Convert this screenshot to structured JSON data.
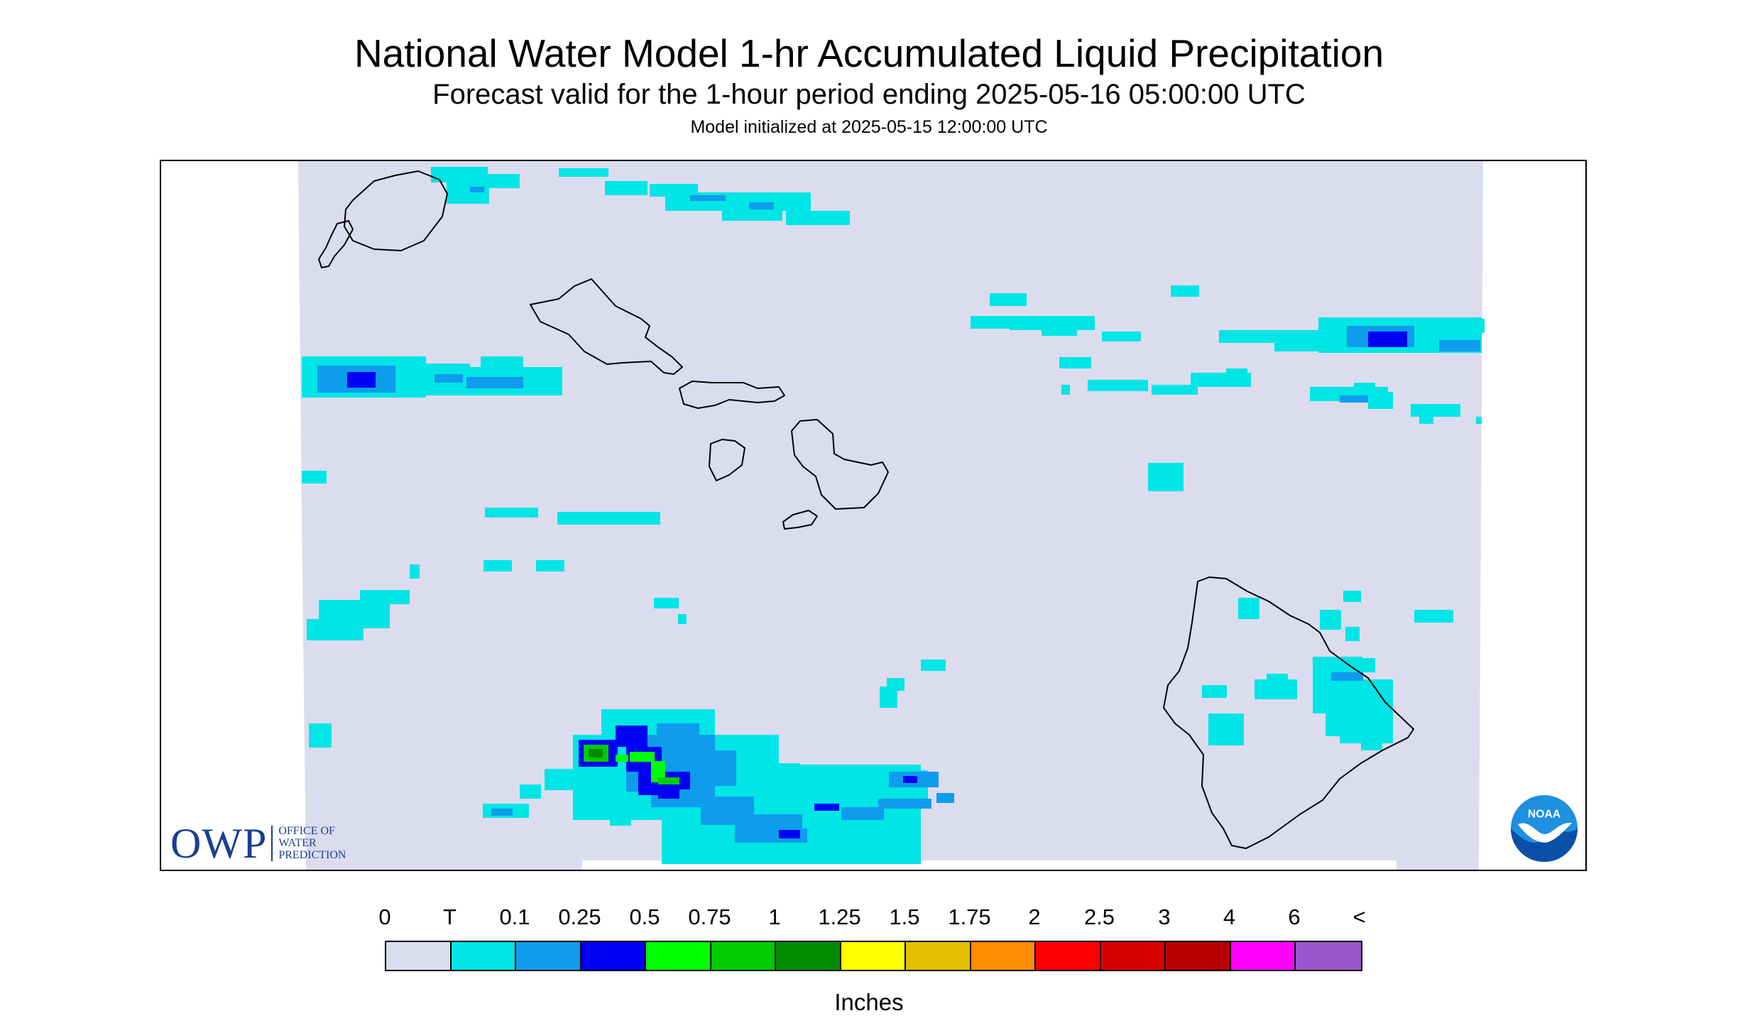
{
  "header": {
    "title": "National Water Model 1-hr Accumulated Liquid Precipitation",
    "subtitle": "Forecast valid for the 1-hour period ending 2025-05-16 05:00:00 UTC",
    "init": "Model initialized at 2025-05-15 12:00:00 UTC"
  },
  "map": {
    "background_color": "#dcdcef",
    "coast_color": "#000000",
    "islands": [
      "Niihau",
      "Kauai",
      "Oahu",
      "Molokai",
      "Lanai",
      "Maui",
      "Kahoolawe",
      "Hawaii"
    ]
  },
  "owp_logo": {
    "abbr": "OWP",
    "line1": "OFFICE OF",
    "line2": "WATER",
    "line3": "PREDICTION"
  },
  "noaa_logo": {
    "text": "NOAA"
  },
  "legend": {
    "labels": [
      "0",
      "T",
      "0.1",
      "0.25",
      "0.5",
      "0.75",
      "1",
      "1.25",
      "1.5",
      "1.75",
      "2",
      "2.5",
      "3",
      "4",
      "6",
      "<"
    ],
    "colors": [
      "#dcdcef",
      "#00e5e5",
      "#0f9ced",
      "#0000f5",
      "#00ff00",
      "#00cc00",
      "#008c00",
      "#ffff00",
      "#e5bf00",
      "#ff8c00",
      "#ff0000",
      "#d90000",
      "#b80000",
      "#ff00ff",
      "#9955cc"
    ],
    "units": "Inches"
  }
}
